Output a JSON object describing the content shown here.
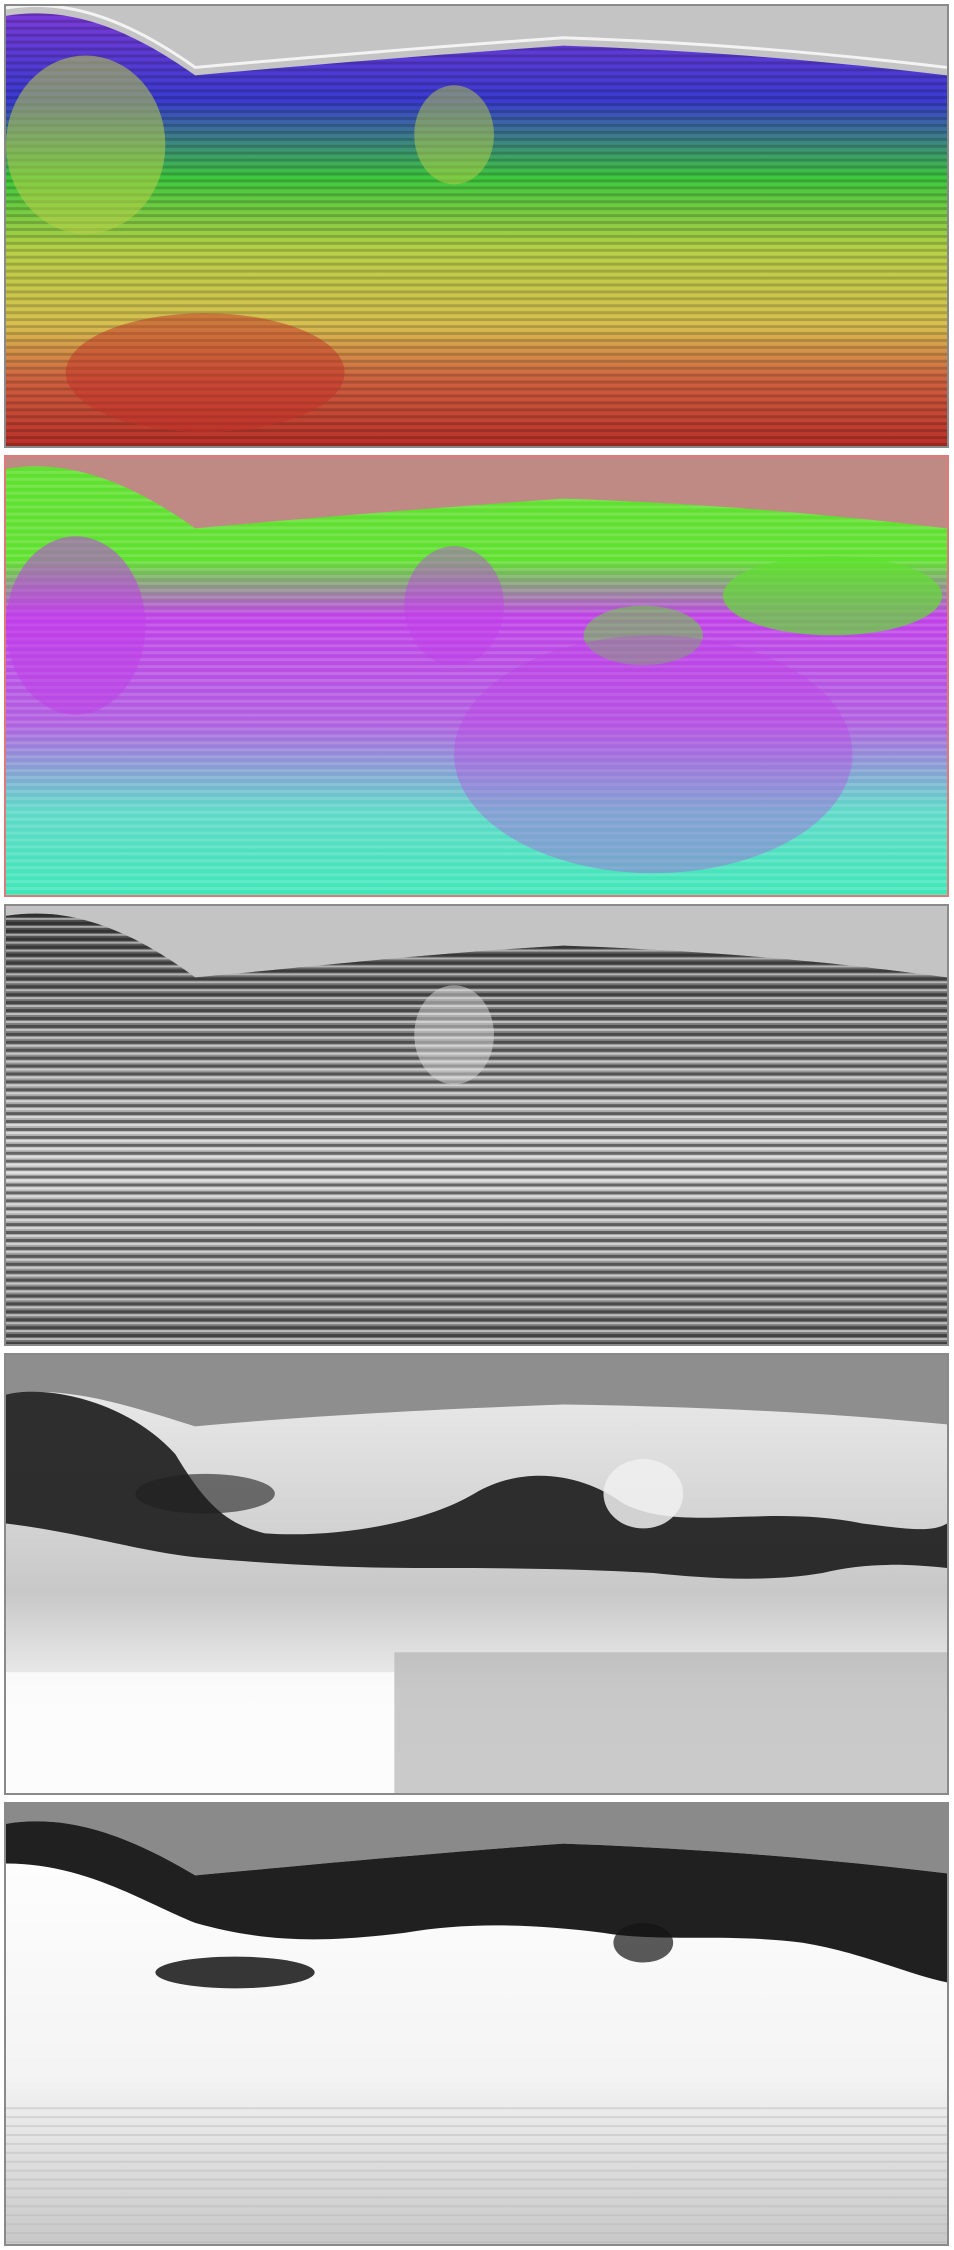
{
  "figure": {
    "panels": [
      {
        "id": "p1",
        "colormap": "rainbow-attribute",
        "label": ""
      },
      {
        "id": "p2",
        "colormap": "green-magenta-cyan-attribute",
        "label": ""
      },
      {
        "id": "p3",
        "colormap": "grayscale-seismic",
        "label": ""
      },
      {
        "id": "p4",
        "colormap": "grayscale-probability",
        "label": ""
      },
      {
        "id": "p5",
        "colormap": "grayscale-probability",
        "label": ""
      }
    ],
    "colors": {
      "sky": "#c4c4c4",
      "sky_p2": "#c08a84",
      "sky_p4": "#8e8e8e",
      "sky_p5": "#8a8a8a",
      "rainbow_blue": "#3a3ad0",
      "rainbow_green": "#3ec83e",
      "rainbow_yellow": "#d8d050",
      "rainbow_red": "#c43a30",
      "magenta": "#c040e8",
      "lime": "#60e030",
      "cyan": "#40e8c8"
    }
  }
}
